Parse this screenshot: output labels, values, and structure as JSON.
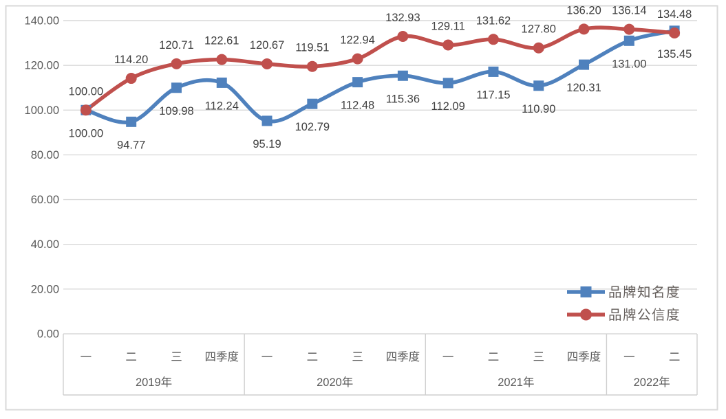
{
  "window": {
    "background": "#ffffff",
    "frame_border_color": "#d9d9d9"
  },
  "chart_data": {
    "type": "line",
    "smoothed": true,
    "title": "",
    "grid": true,
    "gridline_color": "#d9d9d9",
    "axis_line_color": "#cfcfcf",
    "text_colors": {
      "axis_labels": "#595959",
      "data_labels": "#404040",
      "legend_labels": "#67615e"
    },
    "y_axis": {
      "min": 0,
      "max": 140,
      "step": 20,
      "tick_labels": [
        "0.00",
        "20.00",
        "40.00",
        "60.00",
        "80.00",
        "100.00",
        "120.00",
        "140.00"
      ]
    },
    "x_axis": {
      "type": "multi-level-category",
      "groups": [
        {
          "year": "2019年",
          "quarters": [
            "一",
            "二",
            "三",
            "四季度"
          ]
        },
        {
          "year": "2020年",
          "quarters": [
            "一",
            "二",
            "三",
            "四季度"
          ]
        },
        {
          "year": "2021年",
          "quarters": [
            "一",
            "二",
            "三",
            "四季度"
          ]
        },
        {
          "year": "2022年",
          "quarters": [
            "一",
            "二"
          ]
        }
      ]
    },
    "data_label_format": "0.00",
    "series": [
      {
        "name": "品牌知名度",
        "color": "#4F81BD",
        "marker": "square",
        "data_label_position": "below",
        "values": [
          100.0,
          94.77,
          109.98,
          112.24,
          95.19,
          102.79,
          112.48,
          115.36,
          112.09,
          117.15,
          110.9,
          120.31,
          131.0,
          135.45
        ]
      },
      {
        "name": "品牌公信度",
        "color": "#C0504D",
        "marker": "circle",
        "data_label_position": "above",
        "values": [
          100.0,
          114.2,
          120.71,
          122.61,
          120.67,
          119.51,
          122.94,
          132.93,
          129.11,
          131.62,
          127.8,
          136.2,
          136.14,
          134.48
        ]
      }
    ],
    "legend": {
      "position": "right-lower",
      "entries": [
        {
          "label": "品牌知名度",
          "color": "#4F81BD",
          "marker": "square"
        },
        {
          "label": "品牌公信度",
          "color": "#C0504D",
          "marker": "circle"
        }
      ]
    }
  }
}
